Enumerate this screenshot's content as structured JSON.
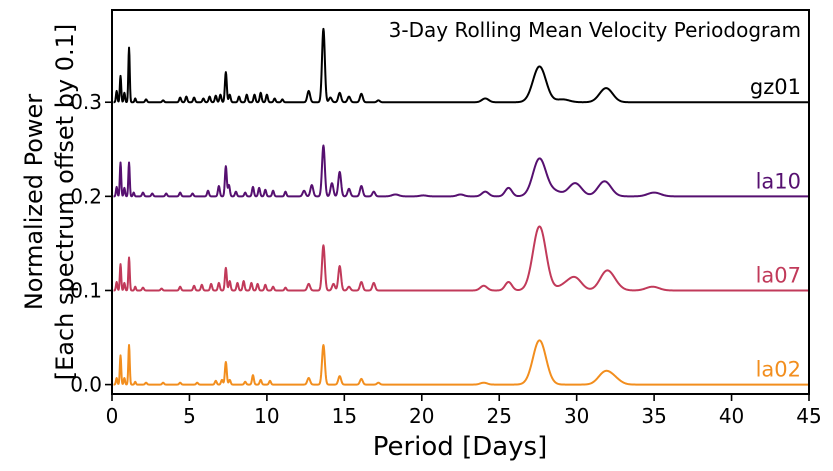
{
  "chart_data": {
    "type": "line",
    "title": "3-Day Rolling Mean Velocity Periodogram",
    "xlabel": "Period [Days]",
    "ylabel_line1": "Normalized Power",
    "ylabel_line2": "[Each spectrum offset by 0.1]",
    "xlim": [
      0,
      45
    ],
    "ylim": [
      -0.01,
      0.398
    ],
    "xticks": [
      0,
      5,
      10,
      15,
      20,
      25,
      30,
      35,
      40,
      45
    ],
    "yticks": [
      0.0,
      0.1,
      0.2,
      0.3
    ],
    "ytick_labels": [
      "0.0",
      "0.1",
      "0.2",
      "0.3"
    ],
    "grid": false,
    "legend": "inline labels at right end of each series",
    "series": [
      {
        "name": "gz01",
        "color": "#000000",
        "offset": 0.3,
        "peaks": [
          [
            0.3,
            0.012
          ],
          [
            0.55,
            0.028
          ],
          [
            0.8,
            0.01
          ],
          [
            1.1,
            0.058
          ],
          [
            1.5,
            0.004
          ],
          [
            2.2,
            0.003
          ],
          [
            3.3,
            0.002
          ],
          [
            4.4,
            0.005
          ],
          [
            4.8,
            0.006
          ],
          [
            5.3,
            0.005
          ],
          [
            5.9,
            0.004
          ],
          [
            6.3,
            0.006
          ],
          [
            6.7,
            0.007
          ],
          [
            7.0,
            0.008
          ],
          [
            7.35,
            0.032
          ],
          [
            7.6,
            0.008
          ],
          [
            8.2,
            0.006
          ],
          [
            8.7,
            0.008
          ],
          [
            9.2,
            0.008
          ],
          [
            9.6,
            0.01
          ],
          [
            10.0,
            0.008
          ],
          [
            10.5,
            0.004
          ],
          [
            11.0,
            0.003
          ],
          [
            12.7,
            0.012
          ],
          [
            13.65,
            0.078
          ],
          [
            14.1,
            0.005
          ],
          [
            14.7,
            0.01
          ],
          [
            15.3,
            0.006
          ],
          [
            16.1,
            0.009
          ],
          [
            17.2,
            0.002
          ],
          [
            24.1,
            0.004
          ],
          [
            27.6,
            0.038
          ],
          [
            29.1,
            0.003
          ],
          [
            31.9,
            0.015
          ]
        ]
      },
      {
        "name": "la10",
        "color": "#561070",
        "offset": 0.2,
        "peaks": [
          [
            0.3,
            0.01
          ],
          [
            0.55,
            0.036
          ],
          [
            0.8,
            0.009
          ],
          [
            1.1,
            0.036
          ],
          [
            1.4,
            0.004
          ],
          [
            2.0,
            0.004
          ],
          [
            2.6,
            0.003
          ],
          [
            3.5,
            0.003
          ],
          [
            4.4,
            0.004
          ],
          [
            5.2,
            0.003
          ],
          [
            6.2,
            0.006
          ],
          [
            6.9,
            0.011
          ],
          [
            7.35,
            0.032
          ],
          [
            7.55,
            0.012
          ],
          [
            8.0,
            0.005
          ],
          [
            8.6,
            0.004
          ],
          [
            9.1,
            0.01
          ],
          [
            9.5,
            0.009
          ],
          [
            9.9,
            0.007
          ],
          [
            10.4,
            0.006
          ],
          [
            11.2,
            0.005
          ],
          [
            12.4,
            0.006
          ],
          [
            12.9,
            0.012
          ],
          [
            13.65,
            0.054
          ],
          [
            14.2,
            0.014
          ],
          [
            14.7,
            0.026
          ],
          [
            15.3,
            0.008
          ],
          [
            16.1,
            0.011
          ],
          [
            16.9,
            0.005
          ],
          [
            18.3,
            0.002
          ],
          [
            20.1,
            0.001
          ],
          [
            22.5,
            0.002
          ],
          [
            24.1,
            0.005
          ],
          [
            25.6,
            0.009
          ],
          [
            27.6,
            0.04
          ],
          [
            28.6,
            0.005
          ],
          [
            29.9,
            0.014
          ],
          [
            31.8,
            0.016
          ],
          [
            35.0,
            0.004
          ]
        ]
      },
      {
        "name": "la07",
        "color": "#c13a5a",
        "offset": 0.1,
        "peaks": [
          [
            0.3,
            0.009
          ],
          [
            0.55,
            0.028
          ],
          [
            0.8,
            0.008
          ],
          [
            1.1,
            0.035
          ],
          [
            1.5,
            0.004
          ],
          [
            2.0,
            0.003
          ],
          [
            3.2,
            0.002
          ],
          [
            4.4,
            0.004
          ],
          [
            5.3,
            0.005
          ],
          [
            5.8,
            0.006
          ],
          [
            6.4,
            0.007
          ],
          [
            6.9,
            0.008
          ],
          [
            7.35,
            0.024
          ],
          [
            7.6,
            0.01
          ],
          [
            8.1,
            0.008
          ],
          [
            8.5,
            0.01
          ],
          [
            9.0,
            0.008
          ],
          [
            9.4,
            0.007
          ],
          [
            9.9,
            0.006
          ],
          [
            10.4,
            0.004
          ],
          [
            11.2,
            0.003
          ],
          [
            12.7,
            0.007
          ],
          [
            13.65,
            0.048
          ],
          [
            14.3,
            0.007
          ],
          [
            14.7,
            0.026
          ],
          [
            15.3,
            0.004
          ],
          [
            16.1,
            0.009
          ],
          [
            16.9,
            0.008
          ],
          [
            24.0,
            0.005
          ],
          [
            25.6,
            0.009
          ],
          [
            27.6,
            0.068
          ],
          [
            29.2,
            0.005
          ],
          [
            29.9,
            0.013
          ],
          [
            31.9,
            0.018
          ],
          [
            32.4,
            0.006
          ],
          [
            34.9,
            0.004
          ]
        ]
      },
      {
        "name": "la02",
        "color": "#f28e1e",
        "offset": 0.0,
        "peaks": [
          [
            0.3,
            0.007
          ],
          [
            0.55,
            0.031
          ],
          [
            0.8,
            0.007
          ],
          [
            1.1,
            0.042
          ],
          [
            1.5,
            0.003
          ],
          [
            2.2,
            0.002
          ],
          [
            3.3,
            0.002
          ],
          [
            4.4,
            0.002
          ],
          [
            5.5,
            0.002
          ],
          [
            6.7,
            0.004
          ],
          [
            7.1,
            0.005
          ],
          [
            7.35,
            0.024
          ],
          [
            7.6,
            0.005
          ],
          [
            8.6,
            0.003
          ],
          [
            9.1,
            0.01
          ],
          [
            9.6,
            0.005
          ],
          [
            10.2,
            0.004
          ],
          [
            12.7,
            0.007
          ],
          [
            13.65,
            0.042
          ],
          [
            14.7,
            0.009
          ],
          [
            16.1,
            0.006
          ],
          [
            17.2,
            0.002
          ],
          [
            24.0,
            0.002
          ],
          [
            27.6,
            0.047
          ],
          [
            31.8,
            0.012
          ],
          [
            32.4,
            0.006
          ]
        ]
      }
    ]
  }
}
